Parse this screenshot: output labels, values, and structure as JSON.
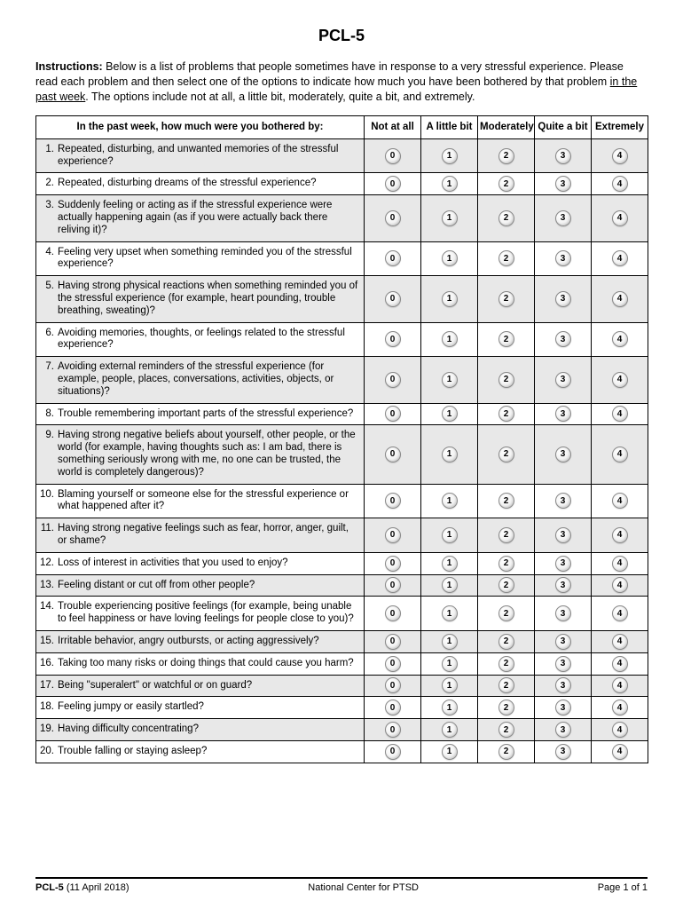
{
  "title": "PCL-5",
  "instructions_label": "Instructions:",
  "instructions_text_1": "  Below is a list of problems that people sometimes have in response to a very stressful experience. Please read each problem and then select one of the options to indicate how much you have been bothered by that problem ",
  "instructions_underlined": "in the past week",
  "instructions_text_2": ". The options include not at all, a little bit, moderately, quite a bit, and extremely.",
  "header_question": "In the past week, how much were you bothered by:",
  "columns": [
    "Not at all",
    "A little bit",
    "Moderately",
    "Quite a bit",
    "Extremely"
  ],
  "option_values": [
    "0",
    "1",
    "2",
    "3",
    "4"
  ],
  "questions": [
    {
      "n": "1.",
      "t": "Repeated, disturbing, and unwanted memories of the stressful experience?",
      "s": true
    },
    {
      "n": "2.",
      "t": "Repeated, disturbing dreams of the stressful experience?",
      "s": false
    },
    {
      "n": "3.",
      "t": "Suddenly feeling or acting as if the stressful experience were actually happening again (as if you were actually back there reliving it)?",
      "s": true
    },
    {
      "n": "4.",
      "t": "Feeling very upset when something reminded you of the stressful experience?",
      "s": false
    },
    {
      "n": "5.",
      "t": "Having strong physical reactions when something reminded you of the stressful experience (for example, heart pounding, trouble breathing, sweating)?",
      "s": true
    },
    {
      "n": "6.",
      "t": "Avoiding memories, thoughts, or feelings related to the stressful experience?",
      "s": false
    },
    {
      "n": "7.",
      "t": "Avoiding external reminders of the stressful experience (for example, people, places, conversations, activities, objects, or situations)?",
      "s": true
    },
    {
      "n": "8.",
      "t": "Trouble remembering important parts of the stressful experience?",
      "s": false
    },
    {
      "n": "9.",
      "t": "Having strong negative beliefs about yourself, other people, or the world (for example, having thoughts such as: I am bad, there is something seriously wrong with me, no one can be trusted, the world is completely dangerous)?",
      "s": true
    },
    {
      "n": "10.",
      "t": "Blaming yourself or someone else for the stressful experience or what happened after it?",
      "s": false
    },
    {
      "n": "11.",
      "t": "Having strong negative feelings such as fear, horror, anger, guilt, or shame?",
      "s": true
    },
    {
      "n": "12.",
      "t": "Loss of interest in activities that you used to enjoy?",
      "s": false
    },
    {
      "n": "13.",
      "t": "Feeling distant or cut off from other people?",
      "s": true
    },
    {
      "n": "14.",
      "t": "Trouble experiencing positive feelings (for example, being unable to feel happiness or have loving feelings for people close to you)?",
      "s": false
    },
    {
      "n": "15.",
      "t": "Irritable behavior, angry outbursts, or acting aggressively?",
      "s": true
    },
    {
      "n": "16.",
      "t": "Taking too many risks or doing things that could cause you harm?",
      "s": false
    },
    {
      "n": "17.",
      "t": "Being \"superalert\" or watchful or on guard?",
      "s": true
    },
    {
      "n": "18.",
      "t": "Feeling jumpy or easily startled?",
      "s": false
    },
    {
      "n": "19.",
      "t": "Having difficulty concentrating?",
      "s": true
    },
    {
      "n": "20.",
      "t": "Trouble falling or staying asleep?",
      "s": false
    }
  ],
  "footer": {
    "form_name": "PCL-5",
    "form_date": " (11 April 2018)",
    "center": "National Center for PTSD",
    "page": "Page 1 of  1"
  },
  "style": {
    "shaded_bg": "#e8e8e8",
    "bubble_border": "#888888",
    "page_bg": "#ffffff",
    "text_color": "#000000"
  }
}
